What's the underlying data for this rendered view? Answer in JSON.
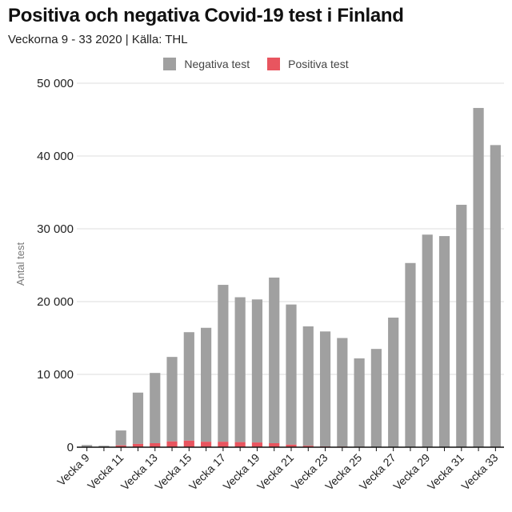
{
  "chart_data": {
    "type": "bar",
    "stacked": true,
    "title": "Positiva och negativa Covid-19 test i Finland",
    "subtitle": "Veckorna 9 - 33 2020 | Källa: THL",
    "xlabel": "",
    "ylabel": "Antal test",
    "ylim": [
      0,
      50000
    ],
    "yticks": [
      0,
      10000,
      20000,
      30000,
      40000,
      50000
    ],
    "ytick_labels": [
      "0",
      "10 000",
      "20 000",
      "30 000",
      "40 000",
      "50 000"
    ],
    "grid": true,
    "legend_position": "top-center",
    "categories": [
      "Vecka 9",
      "Vecka 10",
      "Vecka 11",
      "Vecka 12",
      "Vecka 13",
      "Vecka 14",
      "Vecka 15",
      "Vecka 16",
      "Vecka 17",
      "Vecka 18",
      "Vecka 19",
      "Vecka 20",
      "Vecka 21",
      "Vecka 22",
      "Vecka 23",
      "Vecka 24",
      "Vecka 25",
      "Vecka 26",
      "Vecka 27",
      "Vecka 28",
      "Vecka 29",
      "Vecka 30",
      "Vecka 31",
      "Vecka 32",
      "Vecka 33"
    ],
    "xtick_labels": [
      "Vecka 9",
      "",
      "Vecka 11",
      "",
      "Vecka 13",
      "",
      "Vecka 15",
      "",
      "Vecka 17",
      "",
      "Vecka 19",
      "",
      "Vecka 21",
      "",
      "Vecka 23",
      "",
      "Vecka 25",
      "",
      "Vecka 27",
      "",
      "Vecka 29",
      "",
      "Vecka 31",
      "",
      "Vecka 33"
    ],
    "series": [
      {
        "name": "Positiva test",
        "color": "#e8555f",
        "values": [
          5,
          20,
          250,
          450,
          550,
          800,
          900,
          750,
          750,
          700,
          650,
          550,
          350,
          200,
          100,
          80,
          60,
          50,
          40,
          30,
          30,
          30,
          40,
          50,
          60
        ]
      },
      {
        "name": "Negativa test",
        "color": "#a0a0a0",
        "values": [
          295,
          180,
          2050,
          7050,
          9650,
          11600,
          14900,
          15650,
          21550,
          19900,
          19650,
          22750,
          19250,
          16400,
          15800,
          14920,
          12140,
          13450,
          17760,
          25270,
          29170,
          28970,
          33260,
          46550,
          41440
        ]
      }
    ]
  },
  "legend": {
    "items": [
      {
        "label": "Negativa test",
        "color": "#a0a0a0"
      },
      {
        "label": "Positiva test",
        "color": "#e8555f"
      }
    ]
  }
}
